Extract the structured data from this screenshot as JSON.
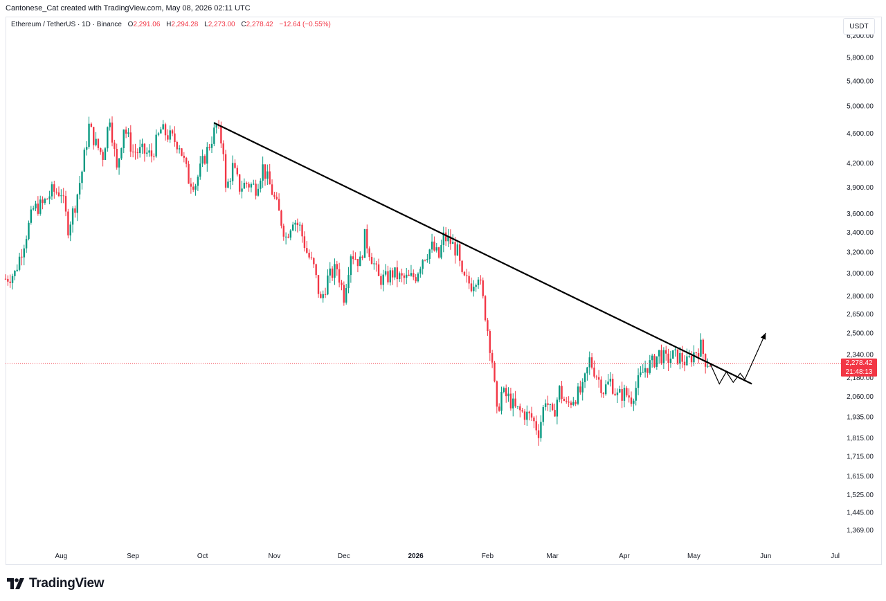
{
  "caption": "Cantonese_Cat created with TradingView.com, May 08, 2026 02:11 UTC",
  "legend": {
    "symbol": "Ethereum / TetherUS · 1D · Binance",
    "open_label": "O",
    "open": "2,291.06",
    "high_label": "H",
    "high": "2,294.28",
    "low_label": "L",
    "low": "2,273.00",
    "close_label": "C",
    "close": "2,278.42",
    "change": "−12.64 (−0.55%)"
  },
  "currency": "USDT",
  "last_price": {
    "value": "2,278.42",
    "countdown": "21:48:13"
  },
  "footer": {
    "brand": "TradingView",
    "logo_icon": "tradingview-logo-icon"
  },
  "colors": {
    "up": "#089981",
    "down": "#f23645",
    "trendline": "#000000",
    "grid_text": "#131722"
  },
  "chart_data": {
    "type": "candlestick",
    "scale": "log",
    "ylim": [
      1300,
      6300
    ],
    "y_ticks": [
      {
        "value": 6200,
        "label": "6,200.00"
      },
      {
        "value": 5800,
        "label": "5,800.00"
      },
      {
        "value": 5400,
        "label": "5,400.00"
      },
      {
        "value": 5000,
        "label": "5,000.00"
      },
      {
        "value": 4600,
        "label": "4,600.00"
      },
      {
        "value": 4200,
        "label": "4,200.00"
      },
      {
        "value": 3900,
        "label": "3,900.00"
      },
      {
        "value": 3600,
        "label": "3,600.00"
      },
      {
        "value": 3400,
        "label": "3,400.00"
      },
      {
        "value": 3200,
        "label": "3,200.00"
      },
      {
        "value": 3000,
        "label": "3,000.00"
      },
      {
        "value": 2800,
        "label": "2,800.00"
      },
      {
        "value": 2650,
        "label": "2,650.00"
      },
      {
        "value": 2500,
        "label": "2,500.00"
      },
      {
        "value": 2340,
        "label": "2,340.00"
      },
      {
        "value": 2180,
        "label": "2,180.00"
      },
      {
        "value": 2060,
        "label": "2,060.00"
      },
      {
        "value": 1935,
        "label": "1,935.00"
      },
      {
        "value": 1815,
        "label": "1,815.00"
      },
      {
        "value": 1715,
        "label": "1,715.00"
      },
      {
        "value": 1615,
        "label": "1,615.00"
      },
      {
        "value": 1525,
        "label": "1,525.00"
      },
      {
        "value": 1445,
        "label": "1,445.00"
      },
      {
        "value": 1369,
        "label": "1,369.00"
      }
    ],
    "x_ticks": [
      {
        "date": "2025-08-01",
        "label": "Aug",
        "bold": false
      },
      {
        "date": "2025-09-01",
        "label": "Sep",
        "bold": false
      },
      {
        "date": "2025-10-01",
        "label": "Oct",
        "bold": false
      },
      {
        "date": "2025-11-01",
        "label": "Nov",
        "bold": false
      },
      {
        "date": "2025-12-01",
        "label": "Dec",
        "bold": false
      },
      {
        "date": "2026-01-01",
        "label": "2026",
        "bold": true
      },
      {
        "date": "2026-02-01",
        "label": "Feb",
        "bold": false
      },
      {
        "date": "2026-03-01",
        "label": "Mar",
        "bold": false
      },
      {
        "date": "2026-04-01",
        "label": "Apr",
        "bold": false
      },
      {
        "date": "2026-05-01",
        "label": "May",
        "bold": false
      },
      {
        "date": "2026-06-01",
        "label": "Jun",
        "bold": false
      },
      {
        "date": "2026-07-01",
        "label": "Jul",
        "bold": false
      }
    ],
    "x_range": [
      "2025-07-08",
      "2026-07-02"
    ],
    "closes": [
      [
        "2025-07-08",
        2950
      ],
      [
        "2025-07-12",
        3000
      ],
      [
        "2025-07-16",
        3300
      ],
      [
        "2025-07-20",
        3650
      ],
      [
        "2025-07-24",
        3700
      ],
      [
        "2025-07-28",
        3850
      ],
      [
        "2025-08-01",
        3850
      ],
      [
        "2025-08-04",
        3450
      ],
      [
        "2025-08-07",
        3700
      ],
      [
        "2025-08-10",
        4100
      ],
      [
        "2025-08-13",
        4700
      ],
      [
        "2025-08-16",
        4450
      ],
      [
        "2025-08-19",
        4300
      ],
      [
        "2025-08-22",
        4850
      ],
      [
        "2025-08-25",
        4100
      ],
      [
        "2025-08-28",
        4700
      ],
      [
        "2025-09-01",
        4350
      ],
      [
        "2025-09-05",
        4350
      ],
      [
        "2025-09-09",
        4300
      ],
      [
        "2025-09-13",
        4650
      ],
      [
        "2025-09-17",
        4550
      ],
      [
        "2025-09-21",
        4450
      ],
      [
        "2025-09-25",
        4000
      ],
      [
        "2025-09-28",
        3950
      ],
      [
        "2025-10-01",
        4200
      ],
      [
        "2025-10-04",
        4450
      ],
      [
        "2025-10-07",
        4700
      ],
      [
        "2025-10-10",
        4400
      ],
      [
        "2025-10-11",
        3850
      ],
      [
        "2025-10-14",
        4150
      ],
      [
        "2025-10-17",
        3900
      ],
      [
        "2025-10-20",
        3950
      ],
      [
        "2025-10-24",
        3900
      ],
      [
        "2025-10-27",
        4150
      ],
      [
        "2025-10-31",
        3850
      ],
      [
        "2025-11-03",
        3600
      ],
      [
        "2025-11-06",
        3350
      ],
      [
        "2025-11-09",
        3550
      ],
      [
        "2025-11-12",
        3450
      ],
      [
        "2025-11-15",
        3200
      ],
      [
        "2025-11-18",
        3050
      ],
      [
        "2025-11-21",
        2750
      ],
      [
        "2025-11-24",
        2950
      ],
      [
        "2025-11-28",
        3050
      ],
      [
        "2025-12-01",
        2800
      ],
      [
        "2025-12-04",
        3200
      ],
      [
        "2025-12-08",
        3100
      ],
      [
        "2025-12-10",
        3350
      ],
      [
        "2025-12-13",
        3150
      ],
      [
        "2025-12-16",
        2950
      ],
      [
        "2025-12-19",
        2950
      ],
      [
        "2025-12-22",
        3000
      ],
      [
        "2025-12-26",
        2950
      ],
      [
        "2025-12-29",
        2950
      ],
      [
        "2026-01-01",
        2980
      ],
      [
        "2026-01-04",
        3150
      ],
      [
        "2026-01-08",
        3250
      ],
      [
        "2026-01-11",
        3150
      ],
      [
        "2026-01-13",
        3350
      ],
      [
        "2026-01-16",
        3300
      ],
      [
        "2026-01-19",
        3200
      ],
      [
        "2026-01-21",
        2950
      ],
      [
        "2026-01-25",
        2900
      ],
      [
        "2026-01-28",
        3000
      ],
      [
        "2026-01-31",
        2650
      ],
      [
        "2026-02-03",
        2300
      ],
      [
        "2026-02-05",
        1950
      ],
      [
        "2026-02-07",
        2080
      ],
      [
        "2026-02-10",
        2050
      ],
      [
        "2026-02-13",
        1980
      ],
      [
        "2026-02-16",
        1960
      ],
      [
        "2026-02-20",
        1930
      ],
      [
        "2026-02-23",
        1850
      ],
      [
        "2026-02-26",
        2050
      ],
      [
        "2026-03-01",
        1930
      ],
      [
        "2026-03-04",
        2100
      ],
      [
        "2026-03-07",
        2000
      ],
      [
        "2026-03-10",
        2050
      ],
      [
        "2026-03-14",
        2100
      ],
      [
        "2026-03-17",
        2300
      ],
      [
        "2026-03-20",
        2200
      ],
      [
        "2026-03-23",
        2100
      ],
      [
        "2026-03-26",
        2160
      ],
      [
        "2026-03-29",
        2060
      ],
      [
        "2026-04-01",
        2080
      ],
      [
        "2026-04-04",
        2050
      ],
      [
        "2026-04-07",
        2150
      ],
      [
        "2026-04-10",
        2250
      ],
      [
        "2026-04-13",
        2280
      ],
      [
        "2026-04-16",
        2350
      ],
      [
        "2026-04-19",
        2300
      ],
      [
        "2026-04-22",
        2330
      ],
      [
        "2026-04-25",
        2320
      ],
      [
        "2026-04-28",
        2280
      ],
      [
        "2026-05-01",
        2350
      ],
      [
        "2026-05-04",
        2400
      ],
      [
        "2026-05-06",
        2300
      ],
      [
        "2026-05-08",
        2278.42
      ]
    ],
    "trendline": {
      "start": [
        "2025-10-06",
        4750
      ],
      "end": [
        "2026-05-26",
        2140
      ]
    },
    "projection": [
      [
        "2026-05-08",
        2278
      ],
      [
        "2026-05-12",
        2140
      ],
      [
        "2026-05-15",
        2220
      ],
      [
        "2026-05-18",
        2150
      ],
      [
        "2026-05-21",
        2210
      ],
      [
        "2026-05-23",
        2170
      ],
      [
        "2026-06-01",
        2500
      ]
    ],
    "last_value": 2278.42
  }
}
